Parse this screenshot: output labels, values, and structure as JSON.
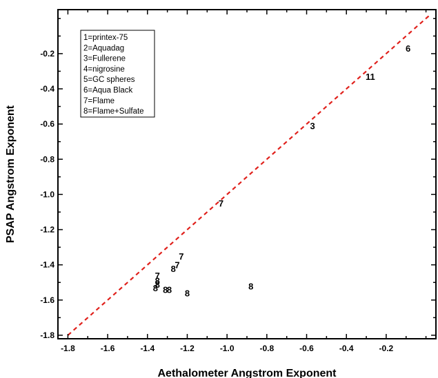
{
  "chart_data": {
    "type": "scatter",
    "title": "",
    "xlabel": "Aethalometer Angstrom Exponent",
    "ylabel": "PSAP Angstrom Exponent",
    "xlim": [
      -1.85,
      0.05
    ],
    "ylim": [
      -1.82,
      0.05
    ],
    "xticks": [
      -1.8,
      -1.6,
      -1.4,
      -1.2,
      -1.0,
      -0.8,
      -0.6,
      -0.4,
      -0.2
    ],
    "yticks": [
      -1.8,
      -1.6,
      -1.4,
      -1.2,
      -1.0,
      -0.8,
      -0.6,
      -0.4,
      -0.2
    ],
    "xtick_labels": [
      "-1.8",
      "-1.6",
      "-1.4",
      "-1.2",
      "-1.0",
      "-0.8",
      "-0.6",
      "-0.4",
      "-0.2"
    ],
    "ytick_labels": [
      "-1.8",
      "-1.6",
      "-1.4",
      "-1.2",
      "-1.0",
      "-0.8",
      "-0.6",
      "-0.4",
      "-0.2"
    ],
    "grid": false,
    "reference_line": {
      "type": "1:1",
      "style": "dashed",
      "color": "#e0201b",
      "x": [
        -1.8,
        0.02
      ],
      "y": [
        -1.8,
        0.02
      ]
    },
    "legend": {
      "placement": "top-left",
      "entries": [
        "1=printex-75",
        "2=Aquadag",
        "3=Fullerene",
        "4=nigrosine",
        "5=GC spheres",
        "6=Aqua Black",
        "7=Flame",
        "8=Flame+Sulfate"
      ]
    },
    "points": [
      {
        "label": "6",
        "x": -0.09,
        "y": -0.17
      },
      {
        "label": "11",
        "x": -0.28,
        "y": -0.33
      },
      {
        "label": "3",
        "x": -0.57,
        "y": -0.61
      },
      {
        "label": "7",
        "x": -1.03,
        "y": -1.05
      },
      {
        "label": "7",
        "x": -1.23,
        "y": -1.35
      },
      {
        "label": "7",
        "x": -1.25,
        "y": -1.4
      },
      {
        "label": "8",
        "x": -1.27,
        "y": -1.42
      },
      {
        "label": "7",
        "x": -1.35,
        "y": -1.46
      },
      {
        "label": "8",
        "x": -1.35,
        "y": -1.49
      },
      {
        "label": "8",
        "x": -1.35,
        "y": -1.51
      },
      {
        "label": "8",
        "x": -1.36,
        "y": -1.53
      },
      {
        "label": "8",
        "x": -1.31,
        "y": -1.54
      },
      {
        "label": "8",
        "x": -1.29,
        "y": -1.54
      },
      {
        "label": "8",
        "x": -1.2,
        "y": -1.56
      },
      {
        "label": "8",
        "x": -0.88,
        "y": -1.52
      }
    ]
  }
}
